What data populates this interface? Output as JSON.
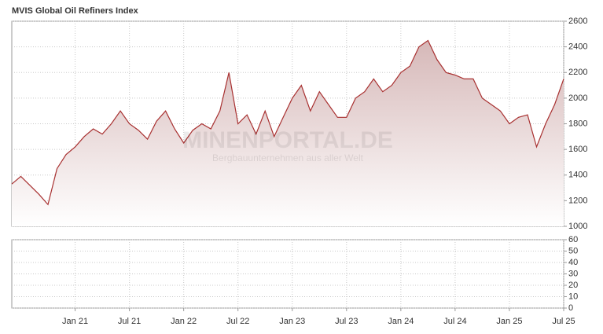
{
  "chart_data": [
    {
      "type": "line",
      "title": "MVIS Global Oil Refiners Index",
      "watermark": [
        "MINENPORTAL.DE",
        "Bergbauunternehmen aus aller Welt"
      ],
      "x": [
        "2020-06",
        "2020-07",
        "2020-08",
        "2020-09",
        "2020-10",
        "2020-11",
        "2020-12",
        "2021-01",
        "2021-02",
        "2021-03",
        "2021-04",
        "2021-05",
        "2021-06",
        "2021-07",
        "2021-08",
        "2021-09",
        "2021-10",
        "2021-11",
        "2021-12",
        "2022-01",
        "2022-02",
        "2022-03",
        "2022-04",
        "2022-05",
        "2022-06",
        "2022-07",
        "2022-08",
        "2022-09",
        "2022-10",
        "2022-11",
        "2022-12",
        "2023-01",
        "2023-02",
        "2023-03",
        "2023-04",
        "2023-05",
        "2023-06",
        "2023-07",
        "2023-08",
        "2023-09",
        "2023-10",
        "2023-11",
        "2023-12",
        "2024-01",
        "2024-02",
        "2024-03",
        "2024-04",
        "2024-05",
        "2024-06",
        "2024-07",
        "2024-08",
        "2024-09",
        "2024-10",
        "2024-11",
        "2024-12",
        "2025-01",
        "2025-02",
        "2025-03",
        "2025-04",
        "2025-05",
        "2025-06",
        "2025-07"
      ],
      "series": [
        {
          "name": "MVIS Global Oil Refiners Index",
          "color": "#a83030",
          "values": [
            1330,
            1390,
            1320,
            1250,
            1170,
            1450,
            1560,
            1620,
            1700,
            1760,
            1720,
            1800,
            1900,
            1800,
            1750,
            1680,
            1820,
            1900,
            1760,
            1650,
            1750,
            1800,
            1760,
            1900,
            2200,
            1800,
            1870,
            1720,
            1900,
            1700,
            1850,
            2000,
            2100,
            1900,
            2050,
            1950,
            1850,
            1850,
            2000,
            2050,
            2150,
            2050,
            2100,
            2200,
            2250,
            2400,
            2450,
            2300,
            2200,
            2180,
            2150,
            2150,
            2000,
            1950,
            1900,
            1800,
            1850,
            1870,
            1620,
            1800,
            1950,
            2150
          ]
        }
      ],
      "xlim": [
        "2020-06",
        "2025-07"
      ],
      "xticks": [
        {
          "value": "2021-01",
          "label": "Jan 21"
        },
        {
          "value": "2021-07",
          "label": "Jul 21"
        },
        {
          "value": "2022-01",
          "label": "Jan 22"
        },
        {
          "value": "2022-07",
          "label": "Jul 22"
        },
        {
          "value": "2023-01",
          "label": "Jan 23"
        },
        {
          "value": "2023-07",
          "label": "Jul 23"
        },
        {
          "value": "2024-01",
          "label": "Jan 24"
        },
        {
          "value": "2024-07",
          "label": "Jul 24"
        },
        {
          "value": "2025-01",
          "label": "Jan 25"
        },
        {
          "value": "2025-07",
          "label": "Jul 25"
        }
      ],
      "ylim": [
        1000,
        2600
      ],
      "yticks": [
        1000,
        1200,
        1400,
        1600,
        1800,
        2000,
        2200,
        2400,
        2600
      ],
      "grid": true
    },
    {
      "type": "bar",
      "ylim": [
        0,
        60
      ],
      "yticks": [
        0,
        10,
        20,
        30,
        40,
        50,
        60
      ],
      "grid": true
    }
  ]
}
